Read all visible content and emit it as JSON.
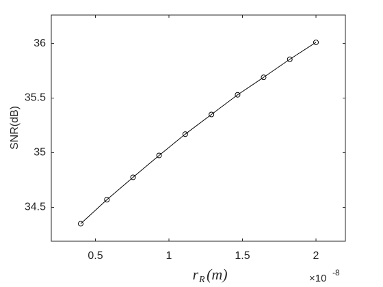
{
  "chart_data": {
    "type": "line",
    "x_label": "r",
    "x_label_sub": "R",
    "x_label_rest": "(m)",
    "y_label": "SNR(dB)",
    "x_exponent_base": "×10",
    "x_exponent": "-8",
    "x": [
      0.4,
      0.578,
      0.756,
      0.933,
      1.111,
      1.289,
      1.467,
      1.644,
      1.822,
      2.0
    ],
    "series": [
      {
        "color": "#000000",
        "marker": "circle",
        "values": [
          34.35,
          34.57,
          34.775,
          34.975,
          35.17,
          35.35,
          35.53,
          35.69,
          35.855,
          36.01
        ]
      }
    ],
    "xlim": [
      0.2,
      2.2
    ],
    "xticks": [
      0.5,
      1,
      1.5,
      2
    ],
    "ylim": [
      34.19,
      36.26
    ],
    "yticks": [
      34.5,
      35,
      35.5,
      36
    ]
  }
}
